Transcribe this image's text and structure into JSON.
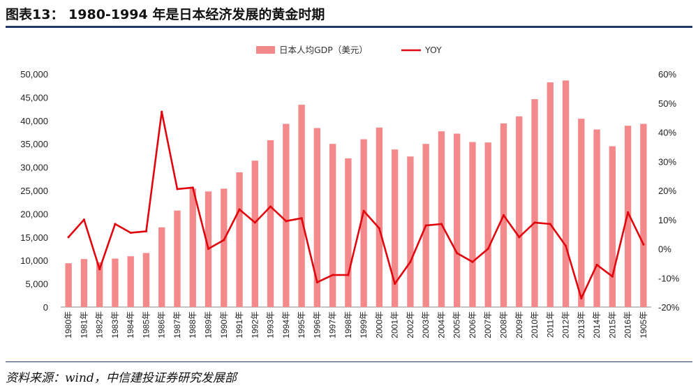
{
  "header": {
    "title": "图表13： 1980-1994 年是日本经济发展的黄金时期"
  },
  "footer": {
    "source": "资料来源：wind，中信建投证券研究发展部"
  },
  "colors": {
    "bar": "#f4898c",
    "line": "#e1060d",
    "rule": "#1f3864"
  },
  "chart_data": {
    "type": "bar",
    "categories": [
      "1980年",
      "1981年",
      "1982年",
      "1983年",
      "1984年",
      "1985年",
      "1986年",
      "1987年",
      "1988年",
      "1989年",
      "1990年",
      "1991年",
      "1992年",
      "1993年",
      "1994年",
      "1995年",
      "1996年",
      "1997年",
      "1998年",
      "1999年",
      "2000年",
      "2001年",
      "2002年",
      "2003年",
      "2004年",
      "2005年",
      "2006年",
      "2007年",
      "2008年",
      "2009年",
      "2010年",
      "2011年",
      "2012年",
      "2013年",
      "2014年",
      "2015年",
      "2016年",
      "1905年"
    ],
    "series": [
      {
        "name": "日本人均GDP（美元）",
        "type": "bar",
        "axis": "left",
        "values": [
          9400,
          10300,
          9600,
          10400,
          10900,
          11600,
          17100,
          20700,
          25400,
          24800,
          25400,
          28900,
          31400,
          35800,
          39300,
          43400,
          38400,
          35000,
          31900,
          36000,
          38500,
          33800,
          32300,
          35000,
          37700,
          37200,
          35400,
          35300,
          39400,
          40900,
          44600,
          48200,
          48600,
          40400,
          38100,
          34500,
          38900,
          39300
        ]
      },
      {
        "name": "YOY",
        "type": "line",
        "axis": "right",
        "values": [
          4.0,
          10.0,
          -7.0,
          8.5,
          5.5,
          6.0,
          47.0,
          20.5,
          21.0,
          0.0,
          3.0,
          13.5,
          9.0,
          14.5,
          9.5,
          10.5,
          -11.5,
          -9.0,
          -9.0,
          13.0,
          7.0,
          -12.0,
          -4.5,
          8.0,
          8.5,
          -1.5,
          -4.5,
          0.0,
          11.5,
          4.0,
          9.0,
          8.5,
          1.0,
          -17.0,
          -5.5,
          -9.5,
          12.5,
          1.5
        ]
      }
    ],
    "yleft": {
      "lim": [
        0,
        50000
      ],
      "ticks": [
        "0",
        "5,000",
        "10,000",
        "15,000",
        "20,000",
        "25,000",
        "30,000",
        "35,000",
        "40,000",
        "45,000",
        "50,000"
      ]
    },
    "yright": {
      "lim": [
        -20,
        60
      ],
      "ticks": [
        "-20%",
        "-10%",
        "0%",
        "10%",
        "20%",
        "30%",
        "40%",
        "50%",
        "60%"
      ]
    },
    "legend": {
      "position": "top-center",
      "entries": [
        "日本人均GDP（美元）",
        "YOY"
      ]
    },
    "grid": false
  }
}
